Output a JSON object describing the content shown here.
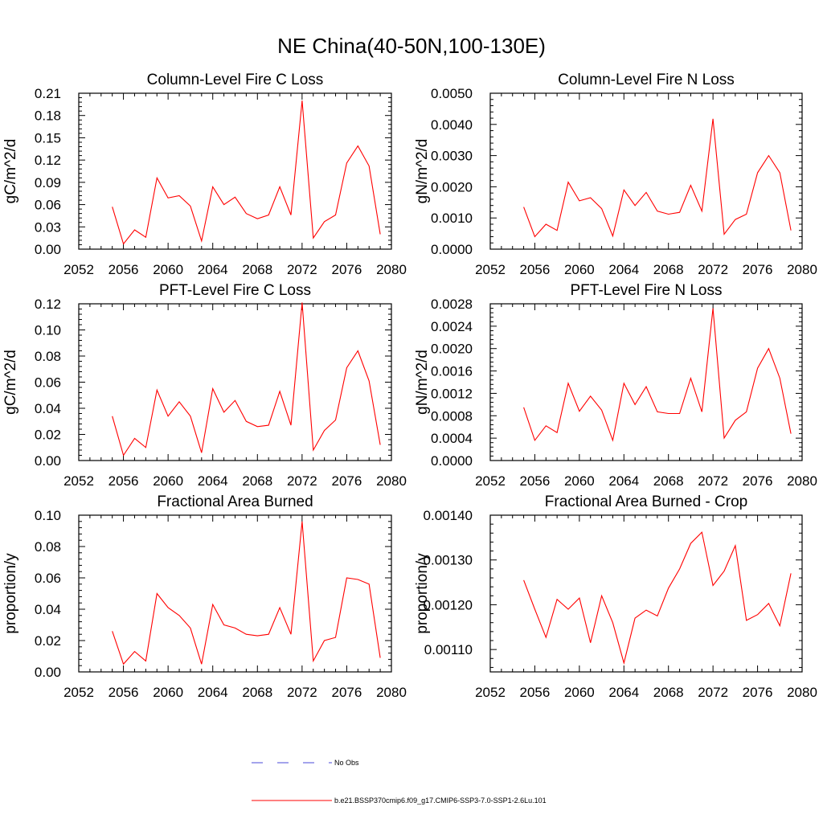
{
  "figure": {
    "title": "NE China(40-50N,100-130E)",
    "legend": [
      {
        "label": "No Obs",
        "color": "#4a4ad8",
        "dashed": true
      },
      {
        "label": "b.e21.BSSP370cmip6.f09_g17.CMIP6-SSP3-7.0-SSP1-2.6Lu.101",
        "color": "#ff0000",
        "dashed": false
      }
    ]
  },
  "chart_data": [
    {
      "type": "line",
      "title": "Column-Level Fire C Loss",
      "ylabel": "gC/m^2/d",
      "xlim": [
        2052,
        2080
      ],
      "ylim": [
        0,
        0.21
      ],
      "xticks": [
        "2052",
        "2056",
        "2060",
        "2064",
        "2068",
        "2072",
        "2076",
        "2080"
      ],
      "yticks": [
        "0.00",
        "0.03",
        "0.06",
        "0.09",
        "0.12",
        "0.15",
        "0.18",
        "0.21"
      ],
      "x": [
        2055,
        2056,
        2057,
        2058,
        2059,
        2060,
        2061,
        2062,
        2063,
        2064,
        2065,
        2066,
        2067,
        2068,
        2069,
        2070,
        2071,
        2072,
        2073,
        2074,
        2075,
        2076,
        2077,
        2078,
        2079
      ],
      "series": [
        {
          "color": "#ff0000",
          "values": [
            0.057,
            0.007,
            0.026,
            0.016,
            0.096,
            0.069,
            0.072,
            0.058,
            0.011,
            0.084,
            0.06,
            0.07,
            0.048,
            0.041,
            0.046,
            0.084,
            0.046,
            0.2,
            0.015,
            0.037,
            0.046,
            0.116,
            0.139,
            0.112,
            0.02
          ]
        }
      ]
    },
    {
      "type": "line",
      "title": "Column-Level Fire N Loss",
      "ylabel": "gN/m^2/d",
      "xlim": [
        2052,
        2080
      ],
      "ylim": [
        0,
        0.005
      ],
      "xticks": [
        "2052",
        "2056",
        "2060",
        "2064",
        "2068",
        "2072",
        "2076",
        "2080"
      ],
      "yticks": [
        "0.0000",
        "0.0010",
        "0.0020",
        "0.0030",
        "0.0040",
        "0.0050"
      ],
      "x": [
        2055,
        2056,
        2057,
        2058,
        2059,
        2060,
        2061,
        2062,
        2063,
        2064,
        2065,
        2066,
        2067,
        2068,
        2069,
        2070,
        2071,
        2072,
        2073,
        2074,
        2075,
        2076,
        2077,
        2078,
        2079
      ],
      "series": [
        {
          "color": "#ff0000",
          "values": [
            0.00135,
            0.0004,
            0.0008,
            0.0006,
            0.00215,
            0.00155,
            0.00165,
            0.0013,
            0.00042,
            0.0019,
            0.0014,
            0.00182,
            0.00122,
            0.00112,
            0.00118,
            0.00205,
            0.00122,
            0.00418,
            0.00048,
            0.00095,
            0.00112,
            0.00245,
            0.003,
            0.00245,
            0.0006
          ]
        }
      ]
    },
    {
      "type": "line",
      "title": "PFT-Level Fire C Loss",
      "ylabel": "gC/m^2/d",
      "xlim": [
        2052,
        2080
      ],
      "ylim": [
        0,
        0.12
      ],
      "xticks": [
        "2052",
        "2056",
        "2060",
        "2064",
        "2068",
        "2072",
        "2076",
        "2080"
      ],
      "yticks": [
        "0.00",
        "0.02",
        "0.04",
        "0.06",
        "0.08",
        "0.10",
        "0.12"
      ],
      "x": [
        2055,
        2056,
        2057,
        2058,
        2059,
        2060,
        2061,
        2062,
        2063,
        2064,
        2065,
        2066,
        2067,
        2068,
        2069,
        2070,
        2071,
        2072,
        2073,
        2074,
        2075,
        2076,
        2077,
        2078,
        2079
      ],
      "series": [
        {
          "color": "#ff0000",
          "values": [
            0.034,
            0.004,
            0.017,
            0.01,
            0.054,
            0.034,
            0.045,
            0.034,
            0.006,
            0.055,
            0.037,
            0.046,
            0.03,
            0.026,
            0.027,
            0.053,
            0.027,
            0.121,
            0.008,
            0.023,
            0.031,
            0.071,
            0.084,
            0.061,
            0.012
          ]
        }
      ]
    },
    {
      "type": "line",
      "title": "PFT-Level Fire N Loss",
      "ylabel": "gN/m^2/d",
      "xlim": [
        2052,
        2080
      ],
      "ylim": [
        0,
        0.0028
      ],
      "xticks": [
        "2052",
        "2056",
        "2060",
        "2064",
        "2068",
        "2072",
        "2076",
        "2080"
      ],
      "yticks": [
        "0.0000",
        "0.0004",
        "0.0008",
        "0.0012",
        "0.0016",
        "0.0020",
        "0.0024",
        "0.0028"
      ],
      "x": [
        2055,
        2056,
        2057,
        2058,
        2059,
        2060,
        2061,
        2062,
        2063,
        2064,
        2065,
        2066,
        2067,
        2068,
        2069,
        2070,
        2071,
        2072,
        2073,
        2074,
        2075,
        2076,
        2077,
        2078,
        2079
      ],
      "series": [
        {
          "color": "#ff0000",
          "values": [
            0.00095,
            0.00036,
            0.00062,
            0.0005,
            0.00138,
            0.00088,
            0.00115,
            0.0009,
            0.00036,
            0.00138,
            0.001,
            0.00132,
            0.00087,
            0.00084,
            0.00084,
            0.00147,
            0.00087,
            0.00272,
            0.0004,
            0.00072,
            0.00087,
            0.00165,
            0.002,
            0.00147,
            0.00048
          ]
        }
      ]
    },
    {
      "type": "line",
      "title": "Fractional Area Burned",
      "ylabel": "proportion/y",
      "xlim": [
        2052,
        2080
      ],
      "ylim": [
        0,
        0.1
      ],
      "xticks": [
        "2052",
        "2056",
        "2060",
        "2064",
        "2068",
        "2072",
        "2076",
        "2080"
      ],
      "yticks": [
        "0.00",
        "0.02",
        "0.04",
        "0.06",
        "0.08",
        "0.10"
      ],
      "x": [
        2055,
        2056,
        2057,
        2058,
        2059,
        2060,
        2061,
        2062,
        2063,
        2064,
        2065,
        2066,
        2067,
        2068,
        2069,
        2070,
        2071,
        2072,
        2073,
        2074,
        2075,
        2076,
        2077,
        2078,
        2079
      ],
      "series": [
        {
          "color": "#ff0000",
          "values": [
            0.026,
            0.005,
            0.013,
            0.007,
            0.05,
            0.041,
            0.036,
            0.028,
            0.005,
            0.043,
            0.03,
            0.028,
            0.024,
            0.023,
            0.024,
            0.041,
            0.024,
            0.096,
            0.007,
            0.02,
            0.022,
            0.06,
            0.059,
            0.056,
            0.009
          ]
        }
      ]
    },
    {
      "type": "line",
      "title": "Fractional Area Burned - Crop",
      "ylabel": "proportion/y",
      "xlim": [
        2052,
        2080
      ],
      "ylim": [
        0.00105,
        0.0014
      ],
      "xticks": [
        "2052",
        "2056",
        "2060",
        "2064",
        "2068",
        "2072",
        "2076",
        "2080"
      ],
      "yticks": [
        "0.00110",
        "0.00120",
        "0.00130",
        "0.00140"
      ],
      "ytick_values": [
        0.0011,
        0.0012,
        0.0013,
        0.0014
      ],
      "x": [
        2055,
        2056,
        2057,
        2058,
        2059,
        2060,
        2061,
        2062,
        2063,
        2064,
        2065,
        2066,
        2067,
        2068,
        2069,
        2070,
        2071,
        2072,
        2073,
        2074,
        2075,
        2076,
        2077,
        2078,
        2079
      ],
      "series": [
        {
          "color": "#ff0000",
          "values": [
            0.001255,
            0.00119,
            0.001127,
            0.001212,
            0.00119,
            0.001215,
            0.001115,
            0.00122,
            0.00116,
            0.00107,
            0.00117,
            0.001188,
            0.001175,
            0.001237,
            0.00128,
            0.001337,
            0.001362,
            0.001243,
            0.001275,
            0.001332,
            0.001165,
            0.001178,
            0.001203,
            0.001153,
            0.00127
          ]
        }
      ]
    }
  ]
}
